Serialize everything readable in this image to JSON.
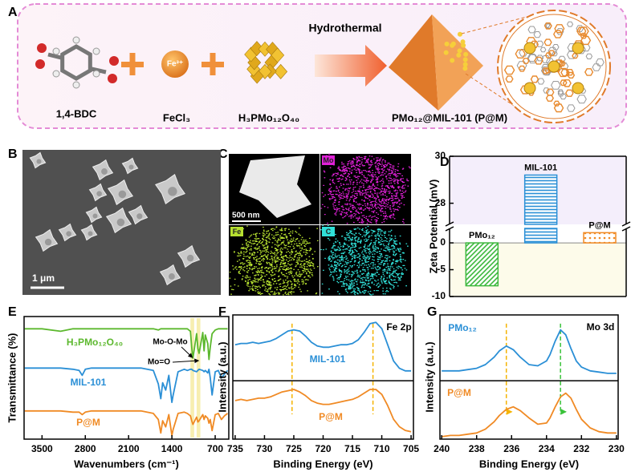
{
  "panel_labels": [
    "A",
    "B",
    "C",
    "D",
    "E",
    "F",
    "G"
  ],
  "scheme": {
    "reagents": [
      "1,4-BDC",
      "FeCl₃",
      "H₃PMo₁₂O₄₀"
    ],
    "ion": "Fe³⁺",
    "process": "Hydrothermal",
    "product": "PMo₁₂@MIL-101 (P@M)"
  },
  "sem": {
    "scale_bar": "1 μm"
  },
  "mapping": {
    "scale_bar": "500 nm",
    "elements": [
      "Mo",
      "Fe",
      "C"
    ]
  },
  "chart_data": [
    {
      "type": "bar",
      "ylabel": "Zeta Potential (mV)",
      "categories": [
        "PMo₁₂",
        "MIL-101",
        "P@M"
      ],
      "values": [
        -8,
        29.2,
        1.9
      ],
      "colors": [
        "#3db83d",
        "#2a8fd6",
        "#f08a24"
      ],
      "patterns": [
        "diagonal",
        "horizontal",
        "dots"
      ],
      "ylim": [
        -10,
        30
      ],
      "ybreak": [
        2.7,
        27.1
      ],
      "yticks": [
        -10,
        -5,
        0,
        28,
        30
      ]
    },
    {
      "type": "line",
      "xlabel": "Wavenumbers (cm⁻¹)",
      "ylabel": "Transmittance (%)",
      "x": [
        3780,
        3500,
        3200,
        3000,
        2900,
        2850,
        2800,
        2700,
        2400,
        2100,
        1900,
        1700,
        1620,
        1580,
        1550,
        1500,
        1450,
        1400,
        1380,
        1300,
        1200,
        1150,
        1100,
        1080,
        1060,
        1000,
        980,
        960,
        900,
        880,
        860,
        820,
        800,
        780,
        750,
        700,
        650,
        600,
        550,
        500
      ],
      "xlim": [
        3790,
        480
      ],
      "xticks": [
        3500,
        2800,
        2100,
        1400,
        700
      ],
      "ylim": [
        0,
        10
      ],
      "series": [
        {
          "name": "H₃PMo₁₂O₄₀",
          "color": "#5cb82e",
          "values": [
            9.0,
            9.0,
            8.8,
            9.0,
            9.0,
            9.0,
            9.0,
            9.0,
            9.0,
            9.0,
            9.0,
            9.0,
            8.9,
            9.0,
            9.0,
            9.0,
            9.0,
            9.0,
            9.0,
            9.0,
            9.0,
            9.0,
            8.8,
            7.5,
            6.6,
            8.6,
            7.4,
            7.0,
            8.7,
            7.2,
            8.5,
            7.8,
            6.5,
            7.5,
            8.6,
            8.9,
            9.0,
            9.0,
            9.0,
            9.0
          ]
        },
        {
          "name": "MIL-101",
          "color": "#2a8fd6",
          "values": [
            5.8,
            5.8,
            5.8,
            5.7,
            5.6,
            5.2,
            5.7,
            5.8,
            5.8,
            5.8,
            5.8,
            5.6,
            4.5,
            3.3,
            4.6,
            4.0,
            5.2,
            3.0,
            3.6,
            5.5,
            5.7,
            5.6,
            5.7,
            5.7,
            5.6,
            5.5,
            5.6,
            5.7,
            5.6,
            5.5,
            5.6,
            5.4,
            5.7,
            5.0,
            3.6,
            5.5,
            5.6,
            5.0,
            5.3,
            5.6
          ]
        },
        {
          "name": "P@M",
          "color": "#f08a24",
          "values": [
            2.3,
            2.3,
            2.3,
            2.2,
            2.2,
            2.0,
            2.2,
            2.3,
            2.3,
            2.3,
            2.3,
            2.1,
            1.6,
            0.5,
            1.5,
            1.0,
            2.0,
            0.3,
            0.8,
            2.1,
            2.2,
            2.1,
            1.9,
            1.5,
            1.2,
            1.8,
            1.4,
            1.5,
            2.0,
            1.6,
            1.9,
            1.7,
            1.3,
            1.6,
            0.7,
            2.0,
            2.1,
            1.6,
            1.9,
            2.1
          ]
        }
      ],
      "highlights": [
        [
          1100,
          1040
        ],
        [
          1000,
          940
        ]
      ],
      "highlight_color": "#f7eeb0",
      "annotations": [
        {
          "text": "Mo-O-Mo",
          "x": 1070
        },
        {
          "text": "Mo=O",
          "x": 970
        }
      ]
    },
    {
      "type": "line",
      "title": "Fe 2p",
      "xlabel": "Binding Energy (eV)",
      "ylabel": "Intensity (a.u.)",
      "x": [
        735,
        734,
        733,
        732,
        731,
        730,
        729,
        728,
        727,
        726,
        725,
        724,
        723,
        722,
        721,
        720,
        719,
        718,
        717,
        716,
        715,
        714,
        713,
        712,
        711,
        710,
        709,
        708,
        707,
        706,
        705
      ],
      "xlim": [
        735.4,
        704.6
      ],
      "xticks": [
        735,
        730,
        725,
        720,
        715,
        710,
        705
      ],
      "ylim": [
        0,
        10
      ],
      "panel_split": 4.7,
      "series": [
        {
          "name": "MIL-101",
          "color": "#2a8fd6",
          "values": [
            7.6,
            7.7,
            7.7,
            7.8,
            7.7,
            7.8,
            7.9,
            8.1,
            8.4,
            8.7,
            8.8,
            8.7,
            8.3,
            7.8,
            7.5,
            7.4,
            7.4,
            7.5,
            7.6,
            7.6,
            7.7,
            8.0,
            8.6,
            9.3,
            9.4,
            8.9,
            7.6,
            6.3,
            5.7,
            5.5,
            5.5
          ]
        },
        {
          "name": "P@M",
          "color": "#f08a24",
          "values": [
            3.1,
            3.2,
            3.1,
            3.2,
            3.3,
            3.3,
            3.4,
            3.6,
            3.8,
            3.9,
            4.0,
            3.8,
            3.5,
            3.1,
            2.9,
            2.8,
            2.8,
            2.9,
            3.0,
            3.1,
            3.2,
            3.4,
            3.7,
            4.0,
            4.0,
            3.6,
            2.7,
            1.6,
            1.0,
            0.7,
            0.6
          ]
        }
      ],
      "guides": [
        {
          "x": 725.3,
          "color": "#f5b400"
        },
        {
          "x": 711.5,
          "color": "#f5b400"
        }
      ]
    },
    {
      "type": "line",
      "title": "Mo 3d",
      "xlabel": "Binding Energy (eV)",
      "ylabel": "Intensity (a.u.)",
      "x": [
        240,
        239.5,
        239,
        238.5,
        238,
        237.5,
        237,
        236.7,
        236.3,
        235.9,
        235.5,
        235,
        234.5,
        234,
        233.8,
        233.5,
        233.2,
        232.9,
        232.6,
        232.3,
        232,
        231.5,
        231,
        230.5,
        230
      ],
      "xlim": [
        240.1,
        229.9
      ],
      "xticks": [
        240,
        238,
        236,
        234,
        232,
        230
      ],
      "ylim": [
        0,
        10
      ],
      "panel_split": 4.7,
      "series": [
        {
          "name": "PMo₁₂",
          "color": "#2a8fd6",
          "values": [
            5.5,
            5.5,
            5.5,
            5.6,
            5.7,
            6.0,
            6.6,
            7.1,
            7.5,
            7.2,
            6.6,
            6.0,
            5.9,
            6.3,
            6.8,
            7.9,
            8.8,
            8.4,
            7.3,
            6.3,
            5.8,
            5.5,
            5.4,
            5.3,
            5.3
          ]
        },
        {
          "name": "P@M",
          "color": "#f08a24",
          "values": [
            0.2,
            0.3,
            0.3,
            0.4,
            0.5,
            0.8,
            1.4,
            1.9,
            2.4,
            2.6,
            2.3,
            1.7,
            1.2,
            1.3,
            1.7,
            2.6,
            3.4,
            3.7,
            3.3,
            2.4,
            1.6,
            0.9,
            0.6,
            0.5,
            0.5
          ]
        }
      ],
      "guides": [
        {
          "x": 236.3,
          "shift": 236.0,
          "color": "#f5b400"
        },
        {
          "x": 233.2,
          "shift": 232.9,
          "color": "#39c239"
        }
      ]
    }
  ]
}
